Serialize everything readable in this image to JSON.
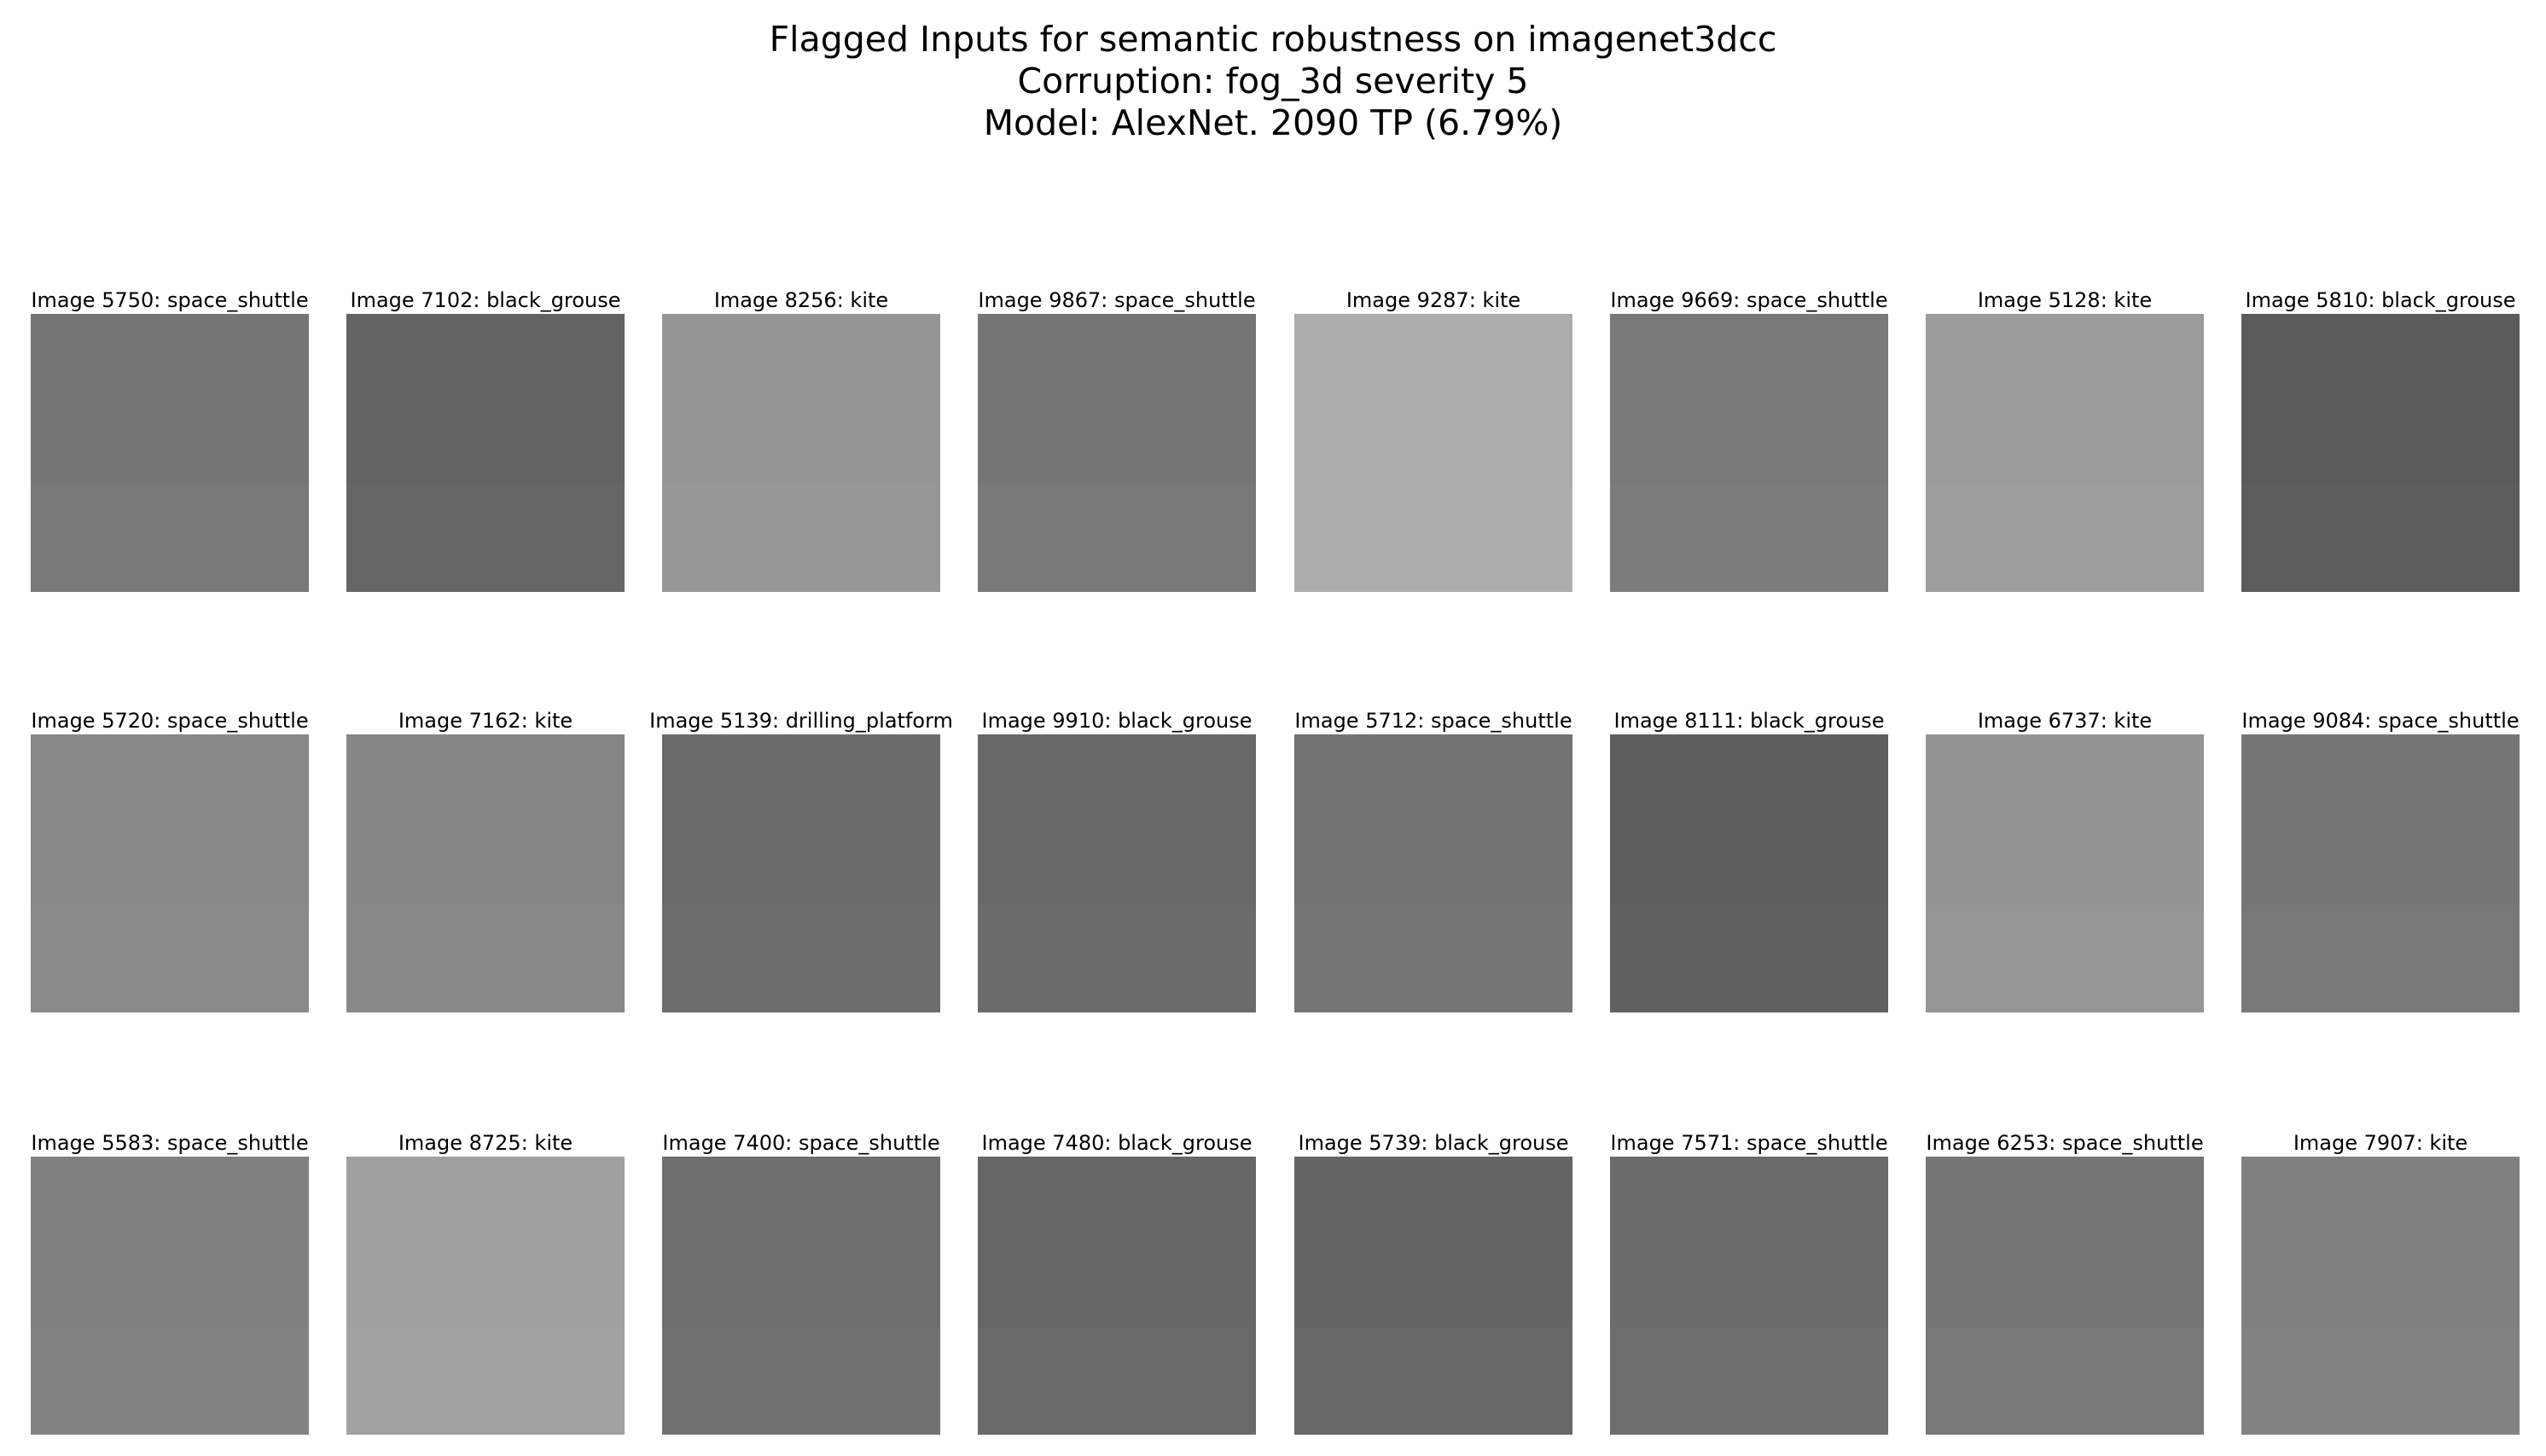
{
  "title": {
    "lines": [
      "Flagged Inputs for semantic robustness on imagenet3dcc",
      "Corruption: fog_3d severity 5",
      "Model: AlexNet. 2090 TP (6.79%)"
    ]
  },
  "images": [
    {
      "caption": "Image 5750: space_shuttle",
      "fill": "#757575"
    },
    {
      "caption": "Image 7102: black_grouse",
      "fill": "#636363"
    },
    {
      "caption": "Image 8256: kite",
      "fill": "#959595"
    },
    {
      "caption": "Image 9867: space_shuttle",
      "fill": "#757575"
    },
    {
      "caption": "Image 9287: kite",
      "fill": "#acacac"
    },
    {
      "caption": "Image 9669: space_shuttle",
      "fill": "#797979"
    },
    {
      "caption": "Image 5128: kite",
      "fill": "#9b9b9b"
    },
    {
      "caption": "Image 5810: black_grouse",
      "fill": "#5a5a5a"
    },
    {
      "caption": "Image 5720: space_shuttle",
      "fill": "#888888"
    },
    {
      "caption": "Image 7162: kite",
      "fill": "#868686"
    },
    {
      "caption": "Image 5139: drilling_platform",
      "fill": "#6a6a6a"
    },
    {
      "caption": "Image 9910: black_grouse",
      "fill": "#686868"
    },
    {
      "caption": "Image 5712: space_shuttle",
      "fill": "#737373"
    },
    {
      "caption": "Image 8111: black_grouse",
      "fill": "#5e5e5e"
    },
    {
      "caption": "Image 6737: kite",
      "fill": "#949494"
    },
    {
      "caption": "Image 9084: space_shuttle",
      "fill": "#757575"
    },
    {
      "caption": "Image 5583: space_shuttle",
      "fill": "#808080"
    },
    {
      "caption": "Image 8725: kite",
      "fill": "#a0a0a0"
    },
    {
      "caption": "Image 7400: space_shuttle",
      "fill": "#6e6e6e"
    },
    {
      "caption": "Image 7480: black_grouse",
      "fill": "#666666"
    },
    {
      "caption": "Image 5739: black_grouse",
      "fill": "#656565"
    },
    {
      "caption": "Image 7571: space_shuttle",
      "fill": "#6b6b6b"
    },
    {
      "caption": "Image 6253: space_shuttle",
      "fill": "#757575"
    },
    {
      "caption": "Image 7907: kite",
      "fill": "#808080"
    }
  ]
}
